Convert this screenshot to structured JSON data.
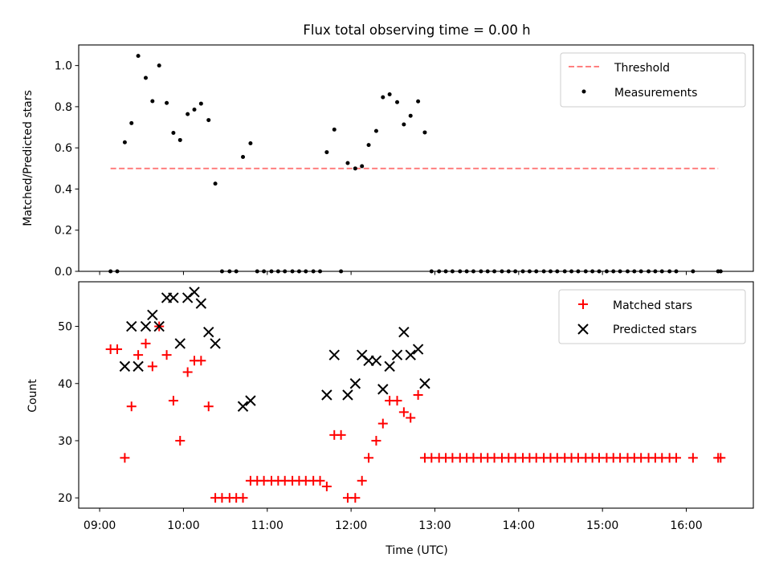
{
  "title": "Flux total observing time = 0.00 h",
  "colors": {
    "threshold": "#ff7f7f",
    "measurements": "#000000",
    "matched": "#ff0000",
    "predicted": "#000000"
  },
  "chart_data": [
    {
      "type": "scatter",
      "title": "Flux total observing time = 0.00 h",
      "xlabel": "",
      "ylabel": "Matched/Predicted stars",
      "xlim": [
        8.75,
        16.8
      ],
      "ylim": [
        0,
        1.1
      ],
      "yticks": [
        "0.0",
        "0.2",
        "0.4",
        "0.6",
        "0.8",
        "1.0"
      ],
      "legend": {
        "placement": "top-right",
        "entries": [
          "Threshold",
          "Measurements"
        ]
      },
      "threshold": {
        "name": "Threshold",
        "value": 0.5,
        "x": [
          9.13,
          16.38
        ]
      },
      "series": [
        {
          "name": "Measurements",
          "x": [
            9.13,
            9.21,
            9.3,
            9.38,
            9.46,
            9.55,
            9.63,
            9.71,
            9.8,
            9.88,
            9.96,
            10.05,
            10.13,
            10.21,
            10.3,
            10.38,
            10.46,
            10.55,
            10.63,
            10.71,
            10.8,
            10.88,
            10.96,
            11.05,
            11.13,
            11.21,
            11.3,
            11.38,
            11.46,
            11.55,
            11.63,
            11.71,
            11.8,
            11.88,
            11.96,
            12.05,
            12.13,
            12.21,
            12.3,
            12.38,
            12.46,
            12.55,
            12.63,
            12.71,
            12.8,
            12.88,
            12.96,
            13.05,
            13.13,
            13.21,
            13.3,
            13.38,
            13.46,
            13.55,
            13.63,
            13.71,
            13.8,
            13.88,
            13.96,
            14.05,
            14.13,
            14.21,
            14.3,
            14.38,
            14.46,
            14.55,
            14.63,
            14.71,
            14.8,
            14.88,
            14.96,
            15.05,
            15.13,
            15.21,
            15.3,
            15.38,
            15.46,
            15.55,
            15.63,
            15.71,
            15.8,
            15.88,
            16.08,
            16.38,
            16.41
          ],
          "y": [
            0,
            0,
            0.627,
            0.72,
            1.047,
            0.94,
            0.827,
            1.0,
            0.818,
            0.673,
            0.638,
            0.764,
            0.786,
            0.815,
            0.735,
            0.426,
            0,
            0,
            0,
            0.556,
            0.622,
            0,
            0,
            0,
            0,
            0,
            0,
            0,
            0,
            0,
            0,
            0.579,
            0.689,
            0,
            0.526,
            0.5,
            0.511,
            0.614,
            0.682,
            0.846,
            0.86,
            0.822,
            0.714,
            0.756,
            0.826,
            0.675,
            0,
            0,
            0,
            0,
            0,
            0,
            0,
            0,
            0,
            0,
            0,
            0,
            0,
            0,
            0,
            0,
            0,
            0,
            0,
            0,
            0,
            0,
            0,
            0,
            0,
            0,
            0,
            0,
            0,
            0,
            0,
            0,
            0,
            0,
            0,
            0,
            0,
            0,
            0
          ]
        }
      ]
    },
    {
      "type": "scatter",
      "title": "",
      "xlabel": "Time (UTC)",
      "ylabel": "Count",
      "xlim": [
        8.75,
        16.8
      ],
      "ylim": [
        18.2,
        57.8
      ],
      "xticks": [
        "09:00",
        "10:00",
        "11:00",
        "12:00",
        "13:00",
        "14:00",
        "15:00",
        "16:00"
      ],
      "yticks": [
        "20",
        "30",
        "40",
        "50"
      ],
      "legend": {
        "placement": "top-right",
        "entries": [
          "Matched stars",
          "Predicted stars"
        ]
      },
      "series": [
        {
          "name": "Matched stars",
          "marker": "+",
          "x": [
            9.13,
            9.21,
            9.3,
            9.38,
            9.46,
            9.55,
            9.63,
            9.71,
            9.8,
            9.88,
            9.96,
            10.05,
            10.13,
            10.21,
            10.3,
            10.38,
            10.46,
            10.55,
            10.63,
            10.71,
            10.8,
            10.88,
            10.96,
            11.05,
            11.13,
            11.21,
            11.3,
            11.38,
            11.46,
            11.55,
            11.63,
            11.71,
            11.8,
            11.88,
            11.96,
            12.05,
            12.13,
            12.21,
            12.3,
            12.38,
            12.46,
            12.55,
            12.63,
            12.71,
            12.8,
            12.88,
            12.96,
            13.05,
            13.13,
            13.21,
            13.3,
            13.38,
            13.46,
            13.55,
            13.63,
            13.71,
            13.8,
            13.88,
            13.96,
            14.05,
            14.13,
            14.21,
            14.3,
            14.38,
            14.46,
            14.55,
            14.63,
            14.71,
            14.8,
            14.88,
            14.96,
            15.05,
            15.13,
            15.21,
            15.3,
            15.38,
            15.46,
            15.55,
            15.63,
            15.71,
            15.8,
            15.88,
            16.08,
            16.38,
            16.41
          ],
          "y": [
            46,
            46,
            27,
            36,
            45,
            47,
            43,
            50,
            45,
            37,
            30,
            42,
            44,
            44,
            36,
            20,
            20,
            20,
            20,
            20,
            23,
            23,
            23,
            23,
            23,
            23,
            23,
            23,
            23,
            23,
            23,
            22,
            31,
            31,
            20,
            20,
            23,
            27,
            30,
            33,
            37,
            37,
            35,
            34,
            38,
            27,
            27,
            27,
            27,
            27,
            27,
            27,
            27,
            27,
            27,
            27,
            27,
            27,
            27,
            27,
            27,
            27,
            27,
            27,
            27,
            27,
            27,
            27,
            27,
            27,
            27,
            27,
            27,
            27,
            27,
            27,
            27,
            27,
            27,
            27,
            27,
            27,
            27,
            27,
            27
          ]
        },
        {
          "name": "Predicted stars",
          "marker": "x",
          "x": [
            9.3,
            9.38,
            9.46,
            9.55,
            9.63,
            9.71,
            9.8,
            9.88,
            9.96,
            10.05,
            10.13,
            10.21,
            10.3,
            10.38,
            10.71,
            10.8,
            11.71,
            11.8,
            11.96,
            12.05,
            12.13,
            12.21,
            12.3,
            12.38,
            12.46,
            12.55,
            12.63,
            12.71,
            12.8,
            12.88
          ],
          "y": [
            43,
            50,
            43,
            50,
            52,
            50,
            55,
            55,
            47,
            55,
            56,
            54,
            49,
            47,
            36,
            37,
            38,
            45,
            38,
            40,
            45,
            44,
            44,
            39,
            43,
            45,
            49,
            45,
            46,
            40
          ]
        }
      ]
    }
  ]
}
